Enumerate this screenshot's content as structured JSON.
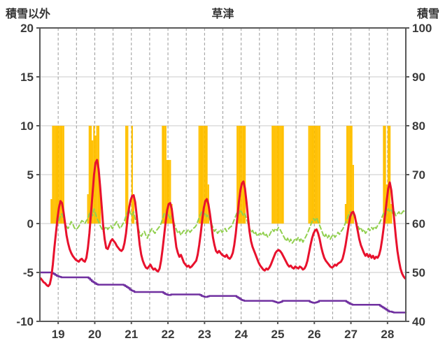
{
  "chart_data": {
    "type": "line",
    "title": "草津",
    "left_axis": {
      "label": "積雪以外",
      "range": [
        -10,
        20
      ],
      "ticks": [
        20,
        15,
        10,
        5,
        0,
        -5,
        -10
      ]
    },
    "right_axis": {
      "label": "積雪",
      "range": [
        40,
        100
      ],
      "ticks": [
        100,
        90,
        80,
        70,
        60,
        50,
        40
      ]
    },
    "x_axis": {
      "domain": [
        19,
        29
      ],
      "points_per_day": 24,
      "tick_labels": [
        "19",
        "20",
        "21",
        "22",
        "23",
        "24",
        "25",
        "26",
        "27",
        "28"
      ]
    },
    "style": {
      "grid_color": "#c9c9c9",
      "vgrid_color": "#9a9a9a",
      "border_color": "#595959",
      "text_color": "#3a3a3a",
      "background": "#ffffff"
    },
    "series": [
      {
        "name": "sunshine-bars",
        "type": "bar",
        "axis": "left",
        "color": "#FFC000",
        "values": [
          0,
          0,
          0,
          0,
          0,
          0,
          0,
          2.5,
          10,
          10,
          10,
          10,
          10,
          10,
          10,
          10,
          0,
          0,
          0,
          0,
          0,
          0,
          0,
          0,
          0,
          0,
          0,
          0,
          0,
          0,
          0,
          3,
          10,
          10,
          8.5,
          10,
          9,
          10,
          10,
          4,
          0,
          0,
          0,
          0,
          0,
          0,
          0,
          0,
          0,
          0,
          0,
          0,
          0,
          0,
          0,
          0,
          10,
          10,
          0,
          0,
          10,
          3,
          0,
          0,
          0,
          0,
          0,
          0,
          0,
          0,
          0,
          0,
          0,
          0,
          0,
          0,
          0,
          0,
          0,
          0,
          10,
          10,
          10,
          6.5,
          6.5,
          6.5,
          2,
          0,
          0,
          0,
          0,
          0,
          0,
          0,
          0,
          0,
          0,
          0,
          0,
          0,
          0,
          0,
          0,
          0,
          10,
          10,
          10,
          10,
          10,
          10,
          4,
          0,
          0,
          0,
          0,
          0,
          0,
          0,
          0,
          0,
          0,
          0,
          0,
          0,
          0,
          0,
          0,
          0,
          0,
          10,
          10,
          10,
          10,
          10,
          10,
          0,
          0,
          0,
          0,
          0,
          0,
          0,
          0,
          0,
          0,
          0,
          0,
          0,
          0,
          0,
          0,
          0,
          10,
          10,
          10,
          10,
          10,
          10,
          10,
          10,
          0,
          0,
          0,
          0,
          0,
          0,
          0,
          0,
          0,
          0,
          0,
          0,
          0,
          0,
          0,
          0,
          10,
          10,
          10,
          10,
          10,
          10,
          10,
          10,
          0,
          0,
          0,
          0,
          0,
          0,
          0,
          0,
          0,
          0,
          0,
          0,
          0,
          0,
          0,
          0,
          2,
          10,
          10,
          10,
          10,
          6,
          0,
          0,
          0,
          0,
          0,
          0,
          0,
          0,
          0,
          0,
          0,
          0,
          0,
          0,
          0,
          0,
          0,
          0,
          0,
          10,
          10,
          4,
          10,
          10,
          2,
          0,
          0,
          0,
          0,
          0,
          0,
          0,
          0,
          0
        ]
      },
      {
        "name": "green-dashed-line",
        "type": "line",
        "dashed": true,
        "axis": "left",
        "color": "#92D050",
        "width": 2,
        "values": [
          null,
          null,
          null,
          null,
          null,
          null,
          null,
          null,
          null,
          null,
          null,
          null,
          0.3,
          0.8,
          1.0,
          0.5,
          0.0,
          -0.3,
          -0.5,
          -0.2,
          0.2,
          0.0,
          -0.4,
          -0.6,
          -0.5,
          -0.3,
          0.0,
          0.3,
          0.2,
          0.0,
          0.3,
          0.5,
          1.0,
          1.2,
          0.8,
          1.5,
          1.0,
          0.5,
          0.2,
          -0.2,
          -0.5,
          -0.8,
          -0.5,
          -0.3,
          -0.6,
          -0.4,
          -0.2,
          -0.5,
          -0.3,
          0.0,
          0.2,
          -0.2,
          -0.5,
          -0.3,
          0.0,
          0.3,
          0.8,
          1.2,
          1.5,
          1.0,
          0.8,
          1.2,
          0.5,
          0.0,
          -0.5,
          -1.0,
          -1.3,
          -1.0,
          -0.8,
          -1.2,
          -1.5,
          -1.0,
          -0.8,
          -0.5,
          -0.8,
          -1.0,
          -0.7,
          -0.5,
          -0.3,
          0.0,
          0.5,
          1.0,
          0.8,
          1.2,
          0.8,
          0.5,
          0.8,
          0.3,
          -0.2,
          -0.6,
          -1.0,
          -0.8,
          -1.2,
          -0.9,
          -0.7,
          -1.0,
          -0.8,
          -0.6,
          -0.9,
          -0.7,
          -0.5,
          -0.4,
          -0.2,
          0.2,
          0.6,
          1.0,
          1.3,
          0.9,
          1.1,
          0.7,
          0.9,
          0.4,
          0.0,
          -0.4,
          -0.8,
          -0.6,
          -1.0,
          -0.8,
          -0.6,
          -0.9,
          -0.7,
          -0.5,
          -0.8,
          -0.6,
          -0.4,
          -0.3,
          0.0,
          0.4,
          0.8,
          1.2,
          1.0,
          1.4,
          1.1,
          0.8,
          1.0,
          0.5,
          0.0,
          -0.5,
          -0.9,
          -0.7,
          -1.1,
          -0.9,
          -1.3,
          -1.1,
          -1.0,
          -1.2,
          -0.9,
          -1.3,
          -1.1,
          -1.4,
          -1.2,
          -0.9,
          -0.6,
          -0.8,
          -0.5,
          -0.7,
          -0.4,
          -0.6,
          -0.9,
          -1.2,
          -1.5,
          -1.8,
          -1.5,
          -1.9,
          -1.6,
          -2.0,
          -1.8,
          -1.5,
          -1.7,
          -1.4,
          -1.8,
          -1.5,
          -1.9,
          -1.6,
          -1.3,
          -1.0,
          -0.6,
          -0.2,
          0.2,
          0.5,
          0.3,
          0.6,
          0.2,
          -0.2,
          -0.6,
          -1.0,
          -1.4,
          -1.1,
          -1.5,
          -1.2,
          -1.6,
          -1.3,
          -1.1,
          -1.4,
          -1.2,
          -0.9,
          -1.1,
          -0.8,
          -0.6,
          -0.3,
          0.1,
          0.5,
          0.9,
          1.2,
          0.8,
          1.0,
          0.6,
          0.2,
          -0.2,
          -0.6,
          -0.4,
          -0.8,
          -0.6,
          -1.0,
          -0.8,
          -0.5,
          -0.7,
          -0.4,
          -0.6,
          -0.3,
          -0.5,
          -0.2,
          0.0,
          0.3,
          0.7,
          1.1,
          0.8,
          1.2,
          1.5,
          1.2,
          1.4,
          1.0,
          1.2,
          0.8,
          1.0,
          1.2,
          0.9,
          1.1,
          1.3,
          1.2
        ]
      },
      {
        "name": "snow-depth-line",
        "type": "line",
        "step": true,
        "axis": "right",
        "color": "#7030A0",
        "width": 2.5,
        "values": [
          50,
          50,
          50,
          50,
          50,
          50,
          50,
          50,
          49.9,
          49.7,
          49.5,
          49.3,
          49.2,
          49.1,
          49.0,
          49.0,
          49.0,
          49.0,
          49.0,
          49.0,
          49.0,
          49.0,
          49.0,
          49.0,
          49.0,
          49.0,
          49.0,
          49.0,
          49.0,
          49.0,
          49.0,
          49.0,
          48.8,
          48.5,
          48.2,
          48.0,
          47.8,
          47.6,
          47.5,
          47.5,
          47.5,
          47.5,
          47.5,
          47.5,
          47.5,
          47.5,
          47.5,
          47.5,
          47.5,
          47.5,
          47.5,
          47.5,
          47.5,
          47.5,
          47.5,
          47.4,
          47.2,
          47.0,
          46.8,
          46.5,
          46.3,
          46.2,
          46.0,
          46.0,
          46.0,
          46.0,
          46.0,
          46.0,
          46.0,
          46.0,
          46.0,
          46.0,
          46.0,
          46.0,
          46.0,
          46.0,
          46.0,
          46.0,
          46.0,
          46.0,
          46.0,
          45.8,
          45.6,
          45.5,
          45.4,
          45.4,
          45.5,
          45.5,
          45.5,
          45.5,
          45.5,
          45.5,
          45.5,
          45.5,
          45.5,
          45.5,
          45.5,
          45.5,
          45.5,
          45.5,
          45.5,
          45.5,
          45.5,
          45.5,
          45.5,
          45.4,
          45.2,
          45.1,
          45.0,
          45.0,
          45.1,
          45.2,
          45.2,
          45.2,
          45.2,
          45.2,
          45.2,
          45.2,
          45.2,
          45.2,
          45.2,
          45.2,
          45.2,
          45.2,
          45.2,
          45.2,
          45.2,
          45.2,
          45.2,
          45.0,
          44.8,
          44.6,
          44.4,
          44.3,
          44.2,
          44.2,
          44.2,
          44.2,
          44.2,
          44.2,
          44.2,
          44.2,
          44.2,
          44.2,
          44.2,
          44.2,
          44.2,
          44.2,
          44.2,
          44.2,
          44.2,
          44.2,
          44.2,
          44.1,
          44.0,
          43.9,
          43.8,
          43.9,
          44.0,
          44.2,
          44.2,
          44.2,
          44.2,
          44.2,
          44.2,
          44.2,
          44.2,
          44.2,
          44.2,
          44.2,
          44.2,
          44.2,
          44.2,
          44.2,
          44.2,
          44.2,
          44.2,
          44.0,
          43.9,
          43.8,
          43.8,
          43.9,
          44.0,
          44.2,
          44.2,
          44.2,
          44.2,
          44.2,
          44.2,
          44.2,
          44.2,
          44.2,
          44.2,
          44.2,
          44.2,
          44.2,
          44.2,
          44.2,
          44.2,
          44.2,
          44.2,
          44.0,
          43.8,
          43.6,
          43.5,
          43.4,
          43.4,
          43.4,
          43.4,
          43.4,
          43.4,
          43.4,
          43.4,
          43.4,
          43.4,
          43.4,
          43.4,
          43.4,
          43.4,
          43.4,
          43.4,
          43.4,
          43.4,
          43.2,
          43.0,
          42.8,
          42.6,
          42.4,
          42.2,
          42.0,
          42.0,
          41.9,
          41.8,
          41.8,
          41.8,
          41.8,
          41.8,
          41.8,
          41.8,
          41.8
        ]
      },
      {
        "name": "temperature-line",
        "type": "line",
        "axis": "left",
        "color": "#E8112D",
        "width": 3,
        "values": [
          -5.6,
          -5.8,
          -6.0,
          -6.1,
          -6.3,
          -6.4,
          -6.2,
          -5.5,
          -4.2,
          -2.5,
          -1.0,
          0.5,
          1.6,
          2.3,
          2.1,
          1.2,
          0.0,
          -1.2,
          -2.0,
          -2.6,
          -3.0,
          -3.3,
          -3.5,
          -3.7,
          -3.8,
          -3.9,
          -3.7,
          -3.6,
          -3.8,
          -3.9,
          -3.5,
          -2.5,
          -1.0,
          1.0,
          3.0,
          5.0,
          6.2,
          6.5,
          5.6,
          3.8,
          1.8,
          -0.2,
          -1.6,
          -2.5,
          -2.6,
          -2.2,
          -1.8,
          -1.6,
          -1.8,
          -2.0,
          -2.3,
          -2.5,
          -2.7,
          -2.8,
          -2.6,
          -2.0,
          -1.0,
          0.5,
          1.6,
          2.4,
          2.8,
          2.9,
          2.2,
          0.8,
          -0.8,
          -2.2,
          -3.2,
          -3.8,
          -4.2,
          -4.5,
          -4.6,
          -4.4,
          -4.2,
          -4.5,
          -4.7,
          -4.6,
          -4.8,
          -4.9,
          -4.6,
          -3.8,
          -2.6,
          -1.2,
          0.2,
          1.4,
          2.0,
          2.1,
          1.5,
          0.2,
          -1.2,
          -2.4,
          -3.0,
          -3.4,
          -3.2,
          -3.6,
          -4.0,
          -4.2,
          -4.4,
          -4.3,
          -4.5,
          -4.4,
          -4.2,
          -4.0,
          -3.8,
          -3.2,
          -2.2,
          -1.0,
          0.4,
          1.6,
          2.3,
          2.5,
          2.0,
          1.0,
          -0.2,
          -1.4,
          -2.2,
          -2.8,
          -3.0,
          -2.8,
          -3.0,
          -3.2,
          -3.3,
          -3.4,
          -3.2,
          -3.5,
          -3.6,
          -3.4,
          -3.0,
          -2.2,
          -1.0,
          0.6,
          2.2,
          3.4,
          4.1,
          4.3,
          3.6,
          2.2,
          0.6,
          -0.8,
          -1.8,
          -2.4,
          -2.8,
          -3.2,
          -3.6,
          -4.0,
          -4.3,
          -4.5,
          -4.7,
          -4.8,
          -4.6,
          -4.7,
          -4.5,
          -4.2,
          -3.8,
          -3.4,
          -3.0,
          -2.8,
          -2.7,
          -2.8,
          -3.0,
          -3.3,
          -3.6,
          -3.9,
          -4.2,
          -4.4,
          -4.3,
          -4.5,
          -4.6,
          -4.4,
          -4.5,
          -4.6,
          -4.4,
          -4.5,
          -4.7,
          -4.6,
          -4.3,
          -3.8,
          -3.0,
          -2.2,
          -1.5,
          -1.0,
          -0.7,
          -0.6,
          -1.0,
          -1.6,
          -2.4,
          -3.0,
          -3.5,
          -3.8,
          -4.0,
          -4.2,
          -4.4,
          -4.5,
          -4.4,
          -4.2,
          -4.3,
          -4.1,
          -4.0,
          -3.9,
          -3.6,
          -3.0,
          -2.2,
          -1.2,
          -0.2,
          0.7,
          1.1,
          1.2,
          0.8,
          0.0,
          -0.8,
          -1.6,
          -2.2,
          -2.6,
          -3.0,
          -3.3,
          -3.1,
          -3.4,
          -3.2,
          -3.5,
          -3.3,
          -3.6,
          -3.4,
          -3.5,
          -3.2,
          -2.6,
          -1.6,
          -0.4,
          1.0,
          2.4,
          3.6,
          4.2,
          3.4,
          1.8,
          0.2,
          -1.4,
          -2.8,
          -3.8,
          -4.6,
          -5.1,
          -5.4,
          -5.6
        ]
      }
    ]
  }
}
